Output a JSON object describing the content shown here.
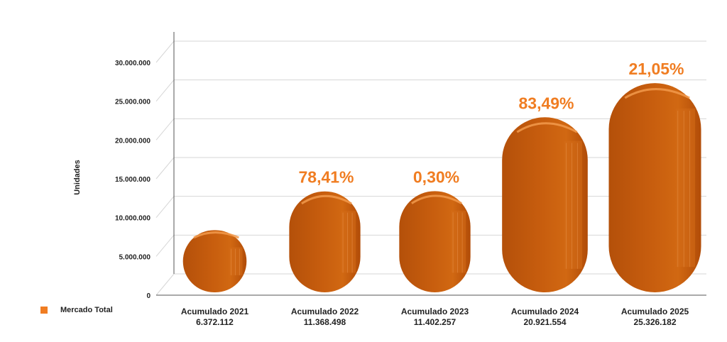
{
  "chart_data": {
    "type": "bar",
    "ylabel": "Unidades",
    "ylim": [
      0,
      30000000
    ],
    "yticks": [
      0,
      5000000,
      10000000,
      15000000,
      20000000,
      25000000,
      30000000
    ],
    "ytick_labels": [
      "0",
      "5.000.000",
      "10.000.000",
      "15.000.000",
      "20.000.000",
      "25.000.000",
      "30.000.000"
    ],
    "categories": [
      "Acumulado 2021",
      "Acumulado 2022",
      "Acumulado 2023",
      "Acumulado 2024",
      "Acumulado 2025"
    ],
    "value_labels": [
      "6.372.112",
      "11.368.498",
      "11.402.257",
      "20.921.554",
      "25.326.182"
    ],
    "series": [
      {
        "name": "Mercado Total",
        "values": [
          6372112,
          11368498,
          11402257,
          20921554,
          25326182
        ]
      }
    ],
    "annotations": [
      "",
      "78,41%",
      "0,30%",
      "83,49%",
      "21,05%"
    ],
    "bar_color": "#c25a0c",
    "accent_color": "#f07d22",
    "grid": true,
    "legend_position": "bottom-left"
  },
  "legend": {
    "label": "Mercado Total"
  }
}
